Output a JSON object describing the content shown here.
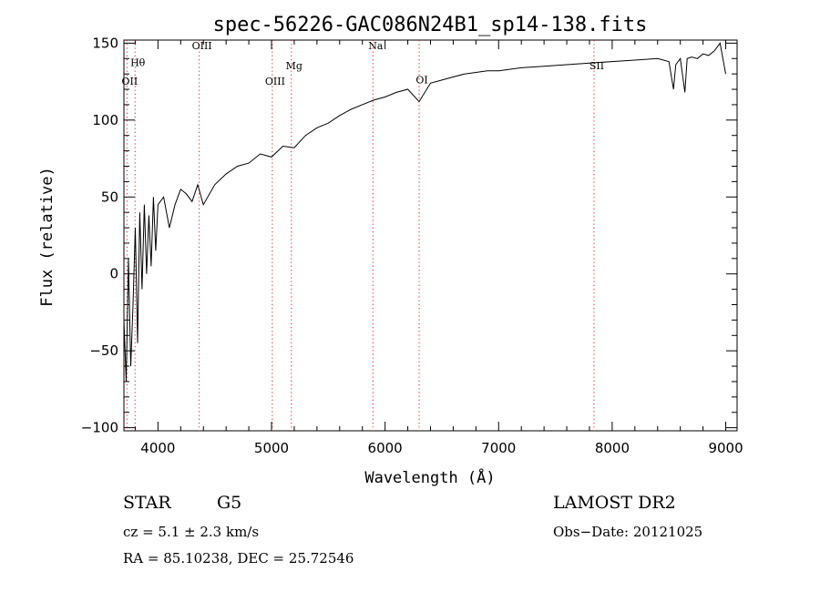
{
  "chart_data": {
    "type": "line",
    "title": "spec-56226-GAC086N24B1_sp14-138.fits",
    "xlabel": "Wavelength (Å)",
    "ylabel": "Flux (relative)",
    "xlim": [
      3700,
      9100
    ],
    "ylim": [
      -102,
      152
    ],
    "xticks": [
      4000,
      5000,
      6000,
      7000,
      8000,
      9000
    ],
    "xtick_labels": [
      "4000",
      "5000",
      "6000",
      "7000",
      "8000",
      "9000"
    ],
    "yticks": [
      -100,
      -50,
      0,
      50,
      100,
      150
    ],
    "ytick_labels": [
      "−100",
      "−50",
      "0",
      "50",
      "100",
      "150"
    ],
    "series": [
      {
        "x": [
          3700,
          3720,
          3740,
          3760,
          3780,
          3800,
          3820,
          3840,
          3860,
          3880,
          3900,
          3920,
          3940,
          3960,
          3980,
          4000,
          4050,
          4100,
          4150,
          4200,
          4250,
          4300,
          4350,
          4400,
          4500,
          4600,
          4700,
          4800,
          4900,
          5000,
          5100,
          5200,
          5300,
          5400,
          5500,
          5600,
          5700,
          5800,
          5900,
          6000,
          6100,
          6200,
          6300,
          6400,
          6500,
          6600,
          6700,
          6800,
          6900,
          7000,
          7200,
          7400,
          7600,
          7800,
          8000,
          8200,
          8400,
          8500,
          8540,
          8560,
          8600,
          8640,
          8660,
          8700,
          8750,
          8800,
          8850,
          8900,
          8950,
          9000
        ],
        "y": [
          -30,
          -70,
          10,
          -60,
          -20,
          30,
          -45,
          40,
          -10,
          45,
          0,
          38,
          5,
          50,
          15,
          45,
          50,
          30,
          45,
          55,
          52,
          47,
          58,
          45,
          58,
          65,
          70,
          72,
          78,
          76,
          83,
          82,
          90,
          95,
          98,
          103,
          107,
          110,
          113,
          115,
          118,
          120,
          112,
          124,
          126,
          128,
          130,
          131,
          132,
          132,
          134,
          135,
          136,
          137,
          138,
          139,
          140,
          138,
          120,
          136,
          140,
          118,
          140,
          141,
          140,
          143,
          142,
          145,
          150,
          130
        ]
      }
    ],
    "lines": [
      {
        "label": "OII",
        "x": 3727,
        "label_y": 123
      },
      {
        "label": "Hθ",
        "x": 3798,
        "label_y": 135
      },
      {
        "label": "OIII",
        "x": 4363,
        "label_y": 146
      },
      {
        "label": "OIII",
        "x": 5007,
        "label_y": 123
      },
      {
        "label": "Mg",
        "x": 5175,
        "label_y": 133
      },
      {
        "label": "Na",
        "x": 5893,
        "label_y": 146
      },
      {
        "label": "OI",
        "x": 6300,
        "label_y": 124
      },
      {
        "label": "SII",
        "x": 7840,
        "label_y": 133
      }
    ],
    "grid": false,
    "legend": "none"
  },
  "info": {
    "object_class": "STAR",
    "subclass": "G5",
    "survey": "LAMOST DR2",
    "cz": "cz = 5.1 ± 2.3 km/s",
    "obs_date": "Obs−Date: 20121025",
    "coords": "RA =  85.10238, DEC =  25.72546"
  }
}
